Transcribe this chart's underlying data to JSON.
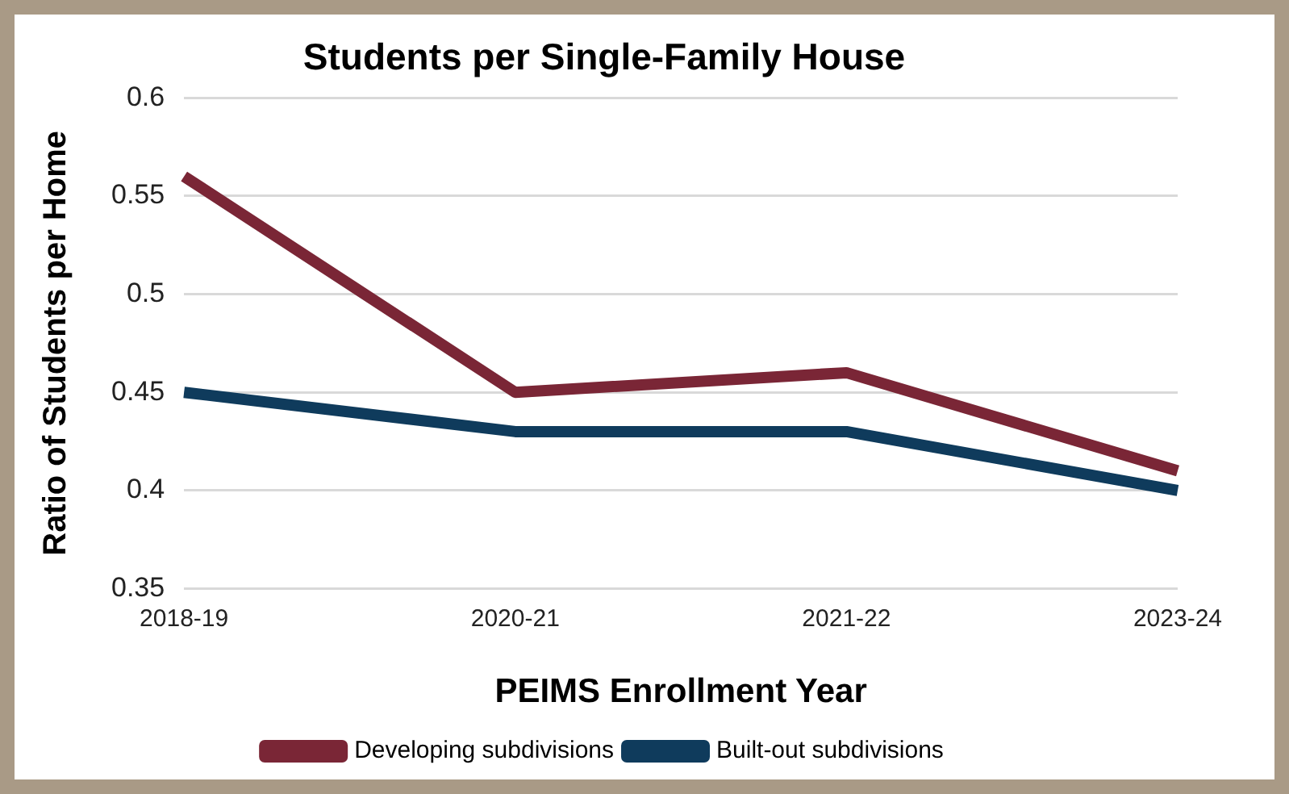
{
  "chart_data": {
    "type": "line",
    "title": "Students per Single-Family House",
    "xlabel": "PEIMS Enrollment Year",
    "ylabel": "Ratio of Students per Home",
    "categories": [
      "2018-19",
      "2020-21",
      "2021-22",
      "2023-24"
    ],
    "series": [
      {
        "name": "Developing subdivisions",
        "color": "#7a2636",
        "values": [
          0.56,
          0.45,
          0.46,
          0.41
        ]
      },
      {
        "name": "Built-out subdivisions",
        "color": "#0f3b5c",
        "values": [
          0.45,
          0.43,
          0.43,
          0.4
        ]
      }
    ],
    "ylim": [
      0.35,
      0.6
    ],
    "yticks": [
      0.35,
      0.4,
      0.45,
      0.5,
      0.55,
      0.6
    ],
    "grid": "y",
    "legend": "bottom",
    "marker": "none",
    "line_style": "solid"
  }
}
